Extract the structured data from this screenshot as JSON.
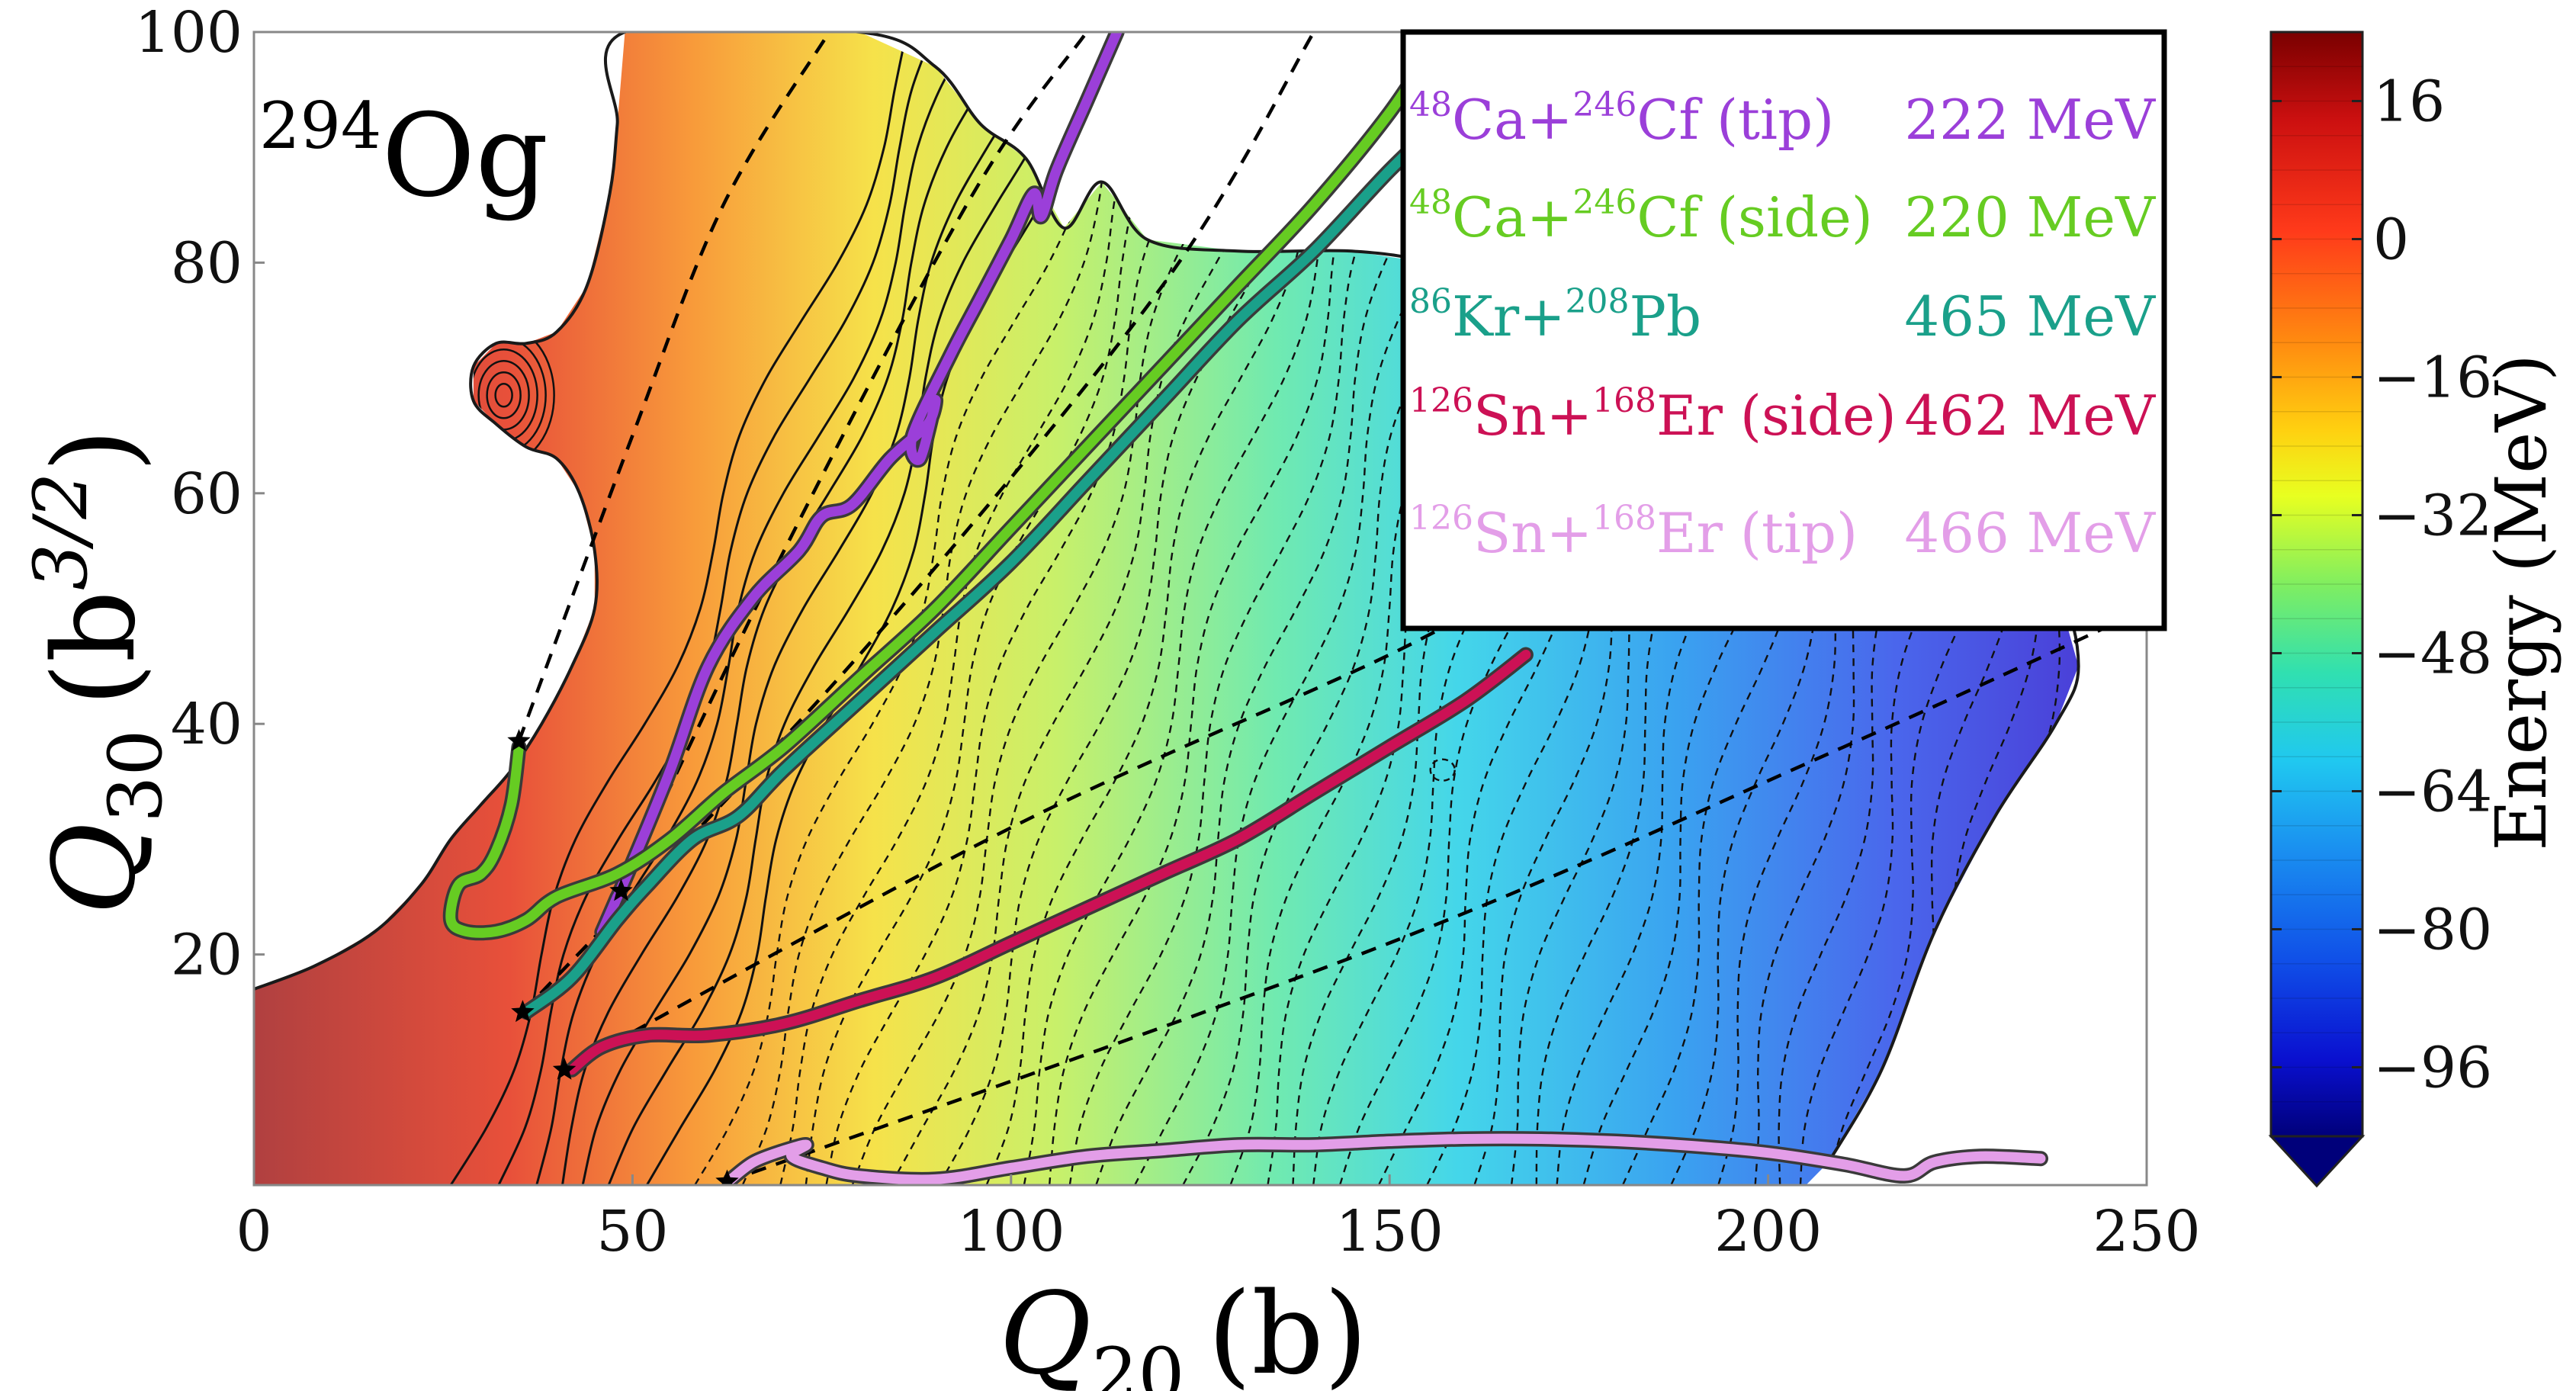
{
  "chart_data": {
    "type": "contour",
    "nucleus_label": {
      "mass": "294",
      "symbol": "Og"
    },
    "xlabel": {
      "var": "Q",
      "sub": "20",
      "unit": "(b)"
    },
    "ylabel": {
      "var": "Q",
      "sub": "30",
      "unit_open": "(b",
      "unit_sup": "3/2",
      "unit_close": ")"
    },
    "xlim": [
      0,
      250
    ],
    "ylim": [
      0,
      100
    ],
    "x_ticks": [
      "0",
      "50",
      "100",
      "150",
      "200",
      "250"
    ],
    "y_ticks": [
      "20",
      "40",
      "60",
      "80",
      "100"
    ],
    "x_tick_values": [
      0,
      50,
      100,
      150,
      200,
      250
    ],
    "y_tick_values": [
      20,
      40,
      60,
      80,
      100
    ],
    "colorbar": {
      "label": "Energy (MeV)",
      "range": [
        -104,
        24
      ],
      "ticks": [
        "16",
        "0",
        "−16",
        "−32",
        "−48",
        "−64",
        "−80",
        "−96"
      ],
      "tick_values": [
        16,
        0,
        -16,
        -32,
        -48,
        -64,
        -80,
        -96
      ],
      "extend": "min"
    },
    "legend_placement": "top-right",
    "series": [
      {
        "proj_mass": "48",
        "proj": "Ca",
        "targ_mass": "246",
        "targ": "Cf",
        "suffix": " (tip)",
        "energy": "222 MeV",
        "color": "#9b3fd9",
        "x": [
          48,
          46,
          50,
          55,
          60,
          66,
          72,
          75,
          79,
          84,
          89,
          90,
          88,
          87,
          92,
          96,
          100,
          103,
          104,
          106,
          110,
          114
        ],
        "y": [
          25,
          22,
          28,
          36,
          45,
          51,
          55,
          58,
          59,
          63,
          66,
          68,
          63,
          65,
          72,
          77,
          82,
          86,
          84,
          88,
          94,
          100
        ]
      },
      {
        "proj_mass": "48",
        "proj": "Ca",
        "targ_mass": "246",
        "targ": "Cf",
        "suffix": " (side)",
        "energy": "220 MeV",
        "color": "#66cc22",
        "x": [
          35,
          34,
          32,
          30,
          27,
          26,
          28,
          32,
          36,
          40,
          48,
          55,
          62,
          70,
          80,
          90,
          100,
          110,
          120,
          130,
          140,
          150,
          157
        ],
        "y": [
          38,
          33,
          29,
          27,
          26,
          23,
          22,
          22,
          23,
          25,
          27,
          30,
          34,
          38,
          44,
          50,
          57,
          64,
          71,
          78,
          85,
          93,
          100
        ]
      },
      {
        "proj_mass": "86",
        "proj": "Kr",
        "targ_mass": "208",
        "targ": "Pb",
        "suffix": "",
        "energy": "465 MeV",
        "color": "#1aa08a",
        "x": [
          36,
          42,
          48,
          52,
          58,
          64,
          70,
          80,
          90,
          100,
          110,
          120,
          130,
          140,
          150,
          158
        ],
        "y": [
          15,
          18,
          23,
          26,
          30,
          32,
          36,
          42,
          48,
          54,
          61,
          68,
          75,
          81,
          88,
          93
        ]
      },
      {
        "proj_mass": "126",
        "proj": "Sn",
        "targ_mass": "168",
        "targ": "Er",
        "suffix": " (side)",
        "energy": "462 MeV",
        "color": "#cc1155",
        "x": [
          42,
          46,
          52,
          60,
          70,
          80,
          90,
          100,
          110,
          120,
          130,
          140,
          150,
          160,
          168
        ],
        "y": [
          10,
          12,
          13,
          13,
          14,
          16,
          18,
          21,
          24,
          27,
          30,
          34,
          38,
          42,
          46
        ]
      },
      {
        "proj_mass": "126",
        "proj": "Sn",
        "targ_mass": "168",
        "targ": "Er",
        "suffix": " (tip)",
        "energy": "466 MeV",
        "color": "#e39ee8",
        "x": [
          63,
          66,
          70,
          73,
          71,
          75,
          80,
          90,
          100,
          110,
          120,
          130,
          140,
          150,
          160,
          170,
          180,
          190,
          200,
          210,
          218,
          222,
          228,
          236
        ],
        "y": [
          0.5,
          2,
          3,
          3.5,
          2.5,
          1.5,
          0.8,
          0.5,
          1.5,
          2.5,
          3,
          3.5,
          3.5,
          3.8,
          4,
          4,
          3.8,
          3.4,
          2.8,
          1.8,
          0.8,
          2,
          2.5,
          2.3
        ]
      }
    ],
    "start_markers": [
      {
        "x": 35,
        "y": 38.5
      },
      {
        "x": 48.5,
        "y": 25.5
      },
      {
        "x": 35.5,
        "y": 15
      },
      {
        "x": 41,
        "y": 10
      },
      {
        "x": 62.5,
        "y": 0.3
      }
    ],
    "dashed_guides": [
      {
        "x": [
          35,
          50,
          62,
          76
        ],
        "y": [
          38.5,
          65,
          85,
          100
        ]
      },
      {
        "x": [
          48.5,
          70,
          95,
          110
        ],
        "y": [
          25.5,
          55,
          86,
          100
        ]
      },
      {
        "x": [
          35.5,
          80,
          120,
          140
        ],
        "y": [
          15,
          46,
          78,
          100
        ]
      },
      {
        "x": [
          41,
          100,
          150,
          172
        ],
        "y": [
          10,
          31,
          46,
          54
        ]
      },
      {
        "x": [
          62.5,
          150,
          210,
          250
        ],
        "y": [
          0.3,
          21,
          38,
          50
        ]
      }
    ]
  }
}
